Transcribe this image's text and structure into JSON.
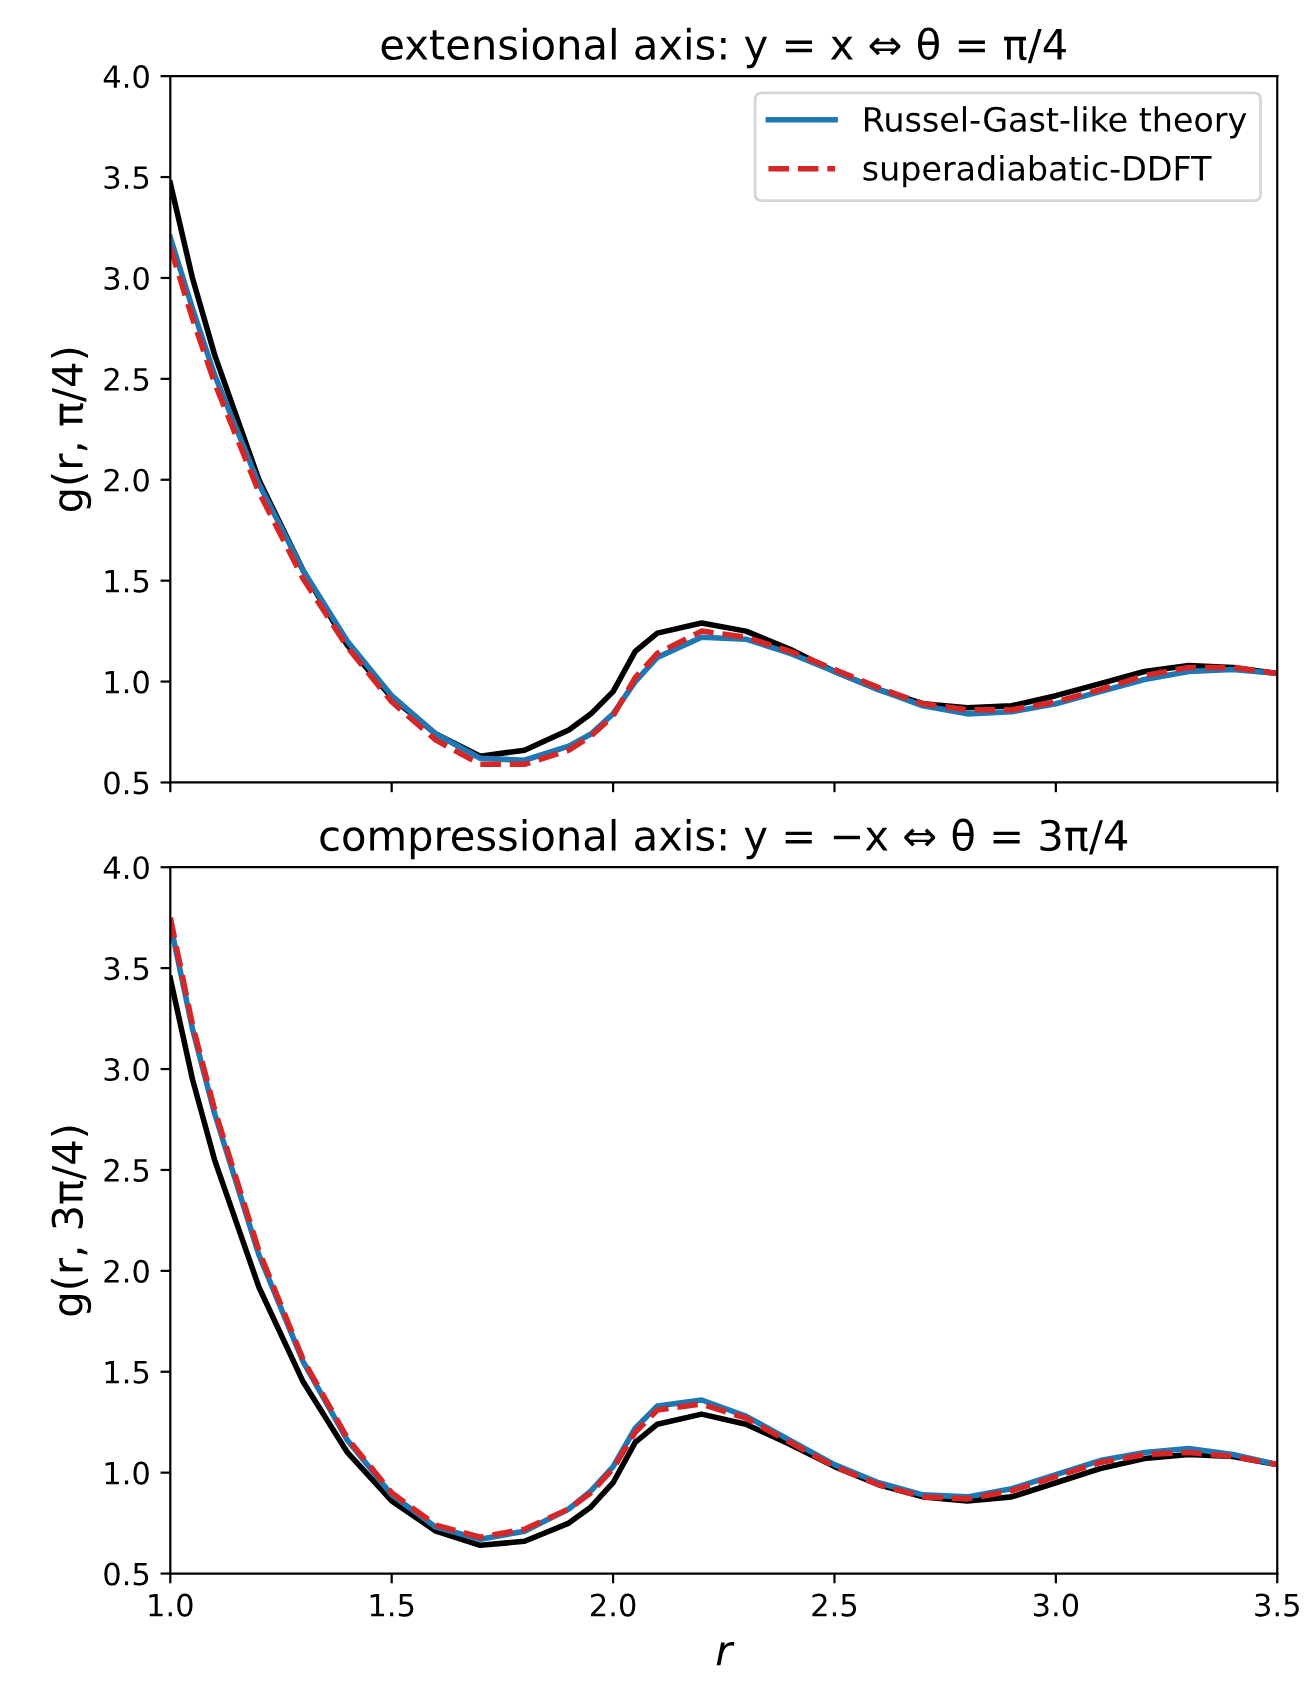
{
  "chart_data": [
    {
      "type": "line",
      "title": "extensional axis: y = x ⇔ θ = π/4",
      "ylabel": "g(r, π/4)",
      "xlim": [
        1.0,
        3.5
      ],
      "ylim": [
        0.5,
        4.0
      ],
      "xticks": [
        1,
        1.5,
        2,
        2.5,
        3,
        3.5
      ],
      "yticks": [
        0.5,
        {
          "value": 1,
          "label": "1.0"
        },
        1.5,
        {
          "value": 2,
          "label": "2.0"
        },
        2.5,
        {
          "value": 3,
          "label": "3.0"
        },
        3.5,
        {
          "value": 4,
          "label": "4.0"
        }
      ],
      "tick_labels": "y",
      "legend": "top right",
      "x": [
        1.0,
        1.05,
        1.1,
        1.2,
        1.3,
        1.4,
        1.5,
        1.6,
        1.7,
        1.8,
        1.9,
        1.95,
        2.0,
        2.05,
        2.1,
        2.2,
        2.3,
        2.4,
        2.5,
        2.6,
        2.7,
        2.8,
        2.9,
        3.0,
        3.1,
        3.2,
        3.3,
        3.4,
        3.5
      ],
      "series": [
        {
          "color": "#000000",
          "line_style": "solid",
          "values": [
            3.47,
            3.0,
            2.62,
            2.0,
            1.55,
            1.18,
            0.92,
            0.74,
            0.63,
            0.66,
            0.76,
            0.84,
            0.95,
            1.15,
            1.24,
            1.29,
            1.25,
            1.16,
            1.05,
            0.96,
            0.89,
            0.87,
            0.88,
            0.93,
            0.99,
            1.05,
            1.08,
            1.07,
            1.04
          ]
        },
        {
          "name": "Russel-Gast-like theory",
          "color": "#1f77b4",
          "line_style": "solid",
          "values": [
            3.2,
            2.85,
            2.52,
            1.98,
            1.55,
            1.2,
            0.93,
            0.74,
            0.62,
            0.61,
            0.68,
            0.74,
            0.84,
            1.0,
            1.12,
            1.22,
            1.21,
            1.14,
            1.05,
            0.96,
            0.88,
            0.84,
            0.85,
            0.89,
            0.95,
            1.01,
            1.05,
            1.06,
            1.04
          ]
        },
        {
          "name": "superadiabatic-DDFT",
          "color": "#d62728",
          "line_style": "dashed",
          "values": [
            3.15,
            2.8,
            2.48,
            1.94,
            1.51,
            1.17,
            0.9,
            0.71,
            0.59,
            0.59,
            0.66,
            0.73,
            0.83,
            1.02,
            1.14,
            1.25,
            1.22,
            1.15,
            1.06,
            0.97,
            0.89,
            0.86,
            0.86,
            0.9,
            0.96,
            1.03,
            1.07,
            1.07,
            1.04
          ]
        }
      ]
    },
    {
      "type": "line",
      "title": "compressional axis: y = −x ⇔ θ = 3π/4",
      "xlabel": "r",
      "ylabel": "g(r, 3π/4)",
      "xlim": [
        1.0,
        3.5
      ],
      "ylim": [
        0.5,
        4.0
      ],
      "xticks": [
        {
          "value": 1,
          "label": "1.0"
        },
        1.5,
        {
          "value": 2,
          "label": "2.0"
        },
        2.5,
        {
          "value": 3,
          "label": "3.0"
        },
        3.5
      ],
      "yticks": [
        0.5,
        {
          "value": 1,
          "label": "1.0"
        },
        1.5,
        {
          "value": 2,
          "label": "2.0"
        },
        2.5,
        {
          "value": 3,
          "label": "3.0"
        },
        3.5,
        {
          "value": 4,
          "label": "4.0"
        }
      ],
      "x": [
        1.0,
        1.05,
        1.1,
        1.2,
        1.3,
        1.4,
        1.5,
        1.6,
        1.7,
        1.8,
        1.9,
        1.95,
        2.0,
        2.05,
        2.1,
        2.2,
        2.3,
        2.4,
        2.5,
        2.6,
        2.7,
        2.8,
        2.9,
        3.0,
        3.1,
        3.2,
        3.3,
        3.4,
        3.5
      ],
      "series": [
        {
          "color": "#000000",
          "line_style": "solid",
          "values": [
            3.45,
            2.95,
            2.55,
            1.92,
            1.45,
            1.1,
            0.86,
            0.71,
            0.64,
            0.66,
            0.75,
            0.83,
            0.95,
            1.15,
            1.24,
            1.29,
            1.24,
            1.14,
            1.03,
            0.94,
            0.88,
            0.86,
            0.88,
            0.95,
            1.02,
            1.07,
            1.09,
            1.08,
            1.04
          ]
        },
        {
          "color": "#1f77b4",
          "line_style": "solid",
          "values": [
            3.72,
            3.2,
            2.78,
            2.08,
            1.55,
            1.16,
            0.89,
            0.73,
            0.67,
            0.71,
            0.82,
            0.91,
            1.03,
            1.22,
            1.33,
            1.36,
            1.28,
            1.16,
            1.04,
            0.95,
            0.89,
            0.88,
            0.92,
            0.99,
            1.06,
            1.1,
            1.12,
            1.09,
            1.04
          ]
        },
        {
          "color": "#d62728",
          "line_style": "dashed",
          "values": [
            3.75,
            3.22,
            2.8,
            2.1,
            1.56,
            1.17,
            0.9,
            0.74,
            0.68,
            0.72,
            0.82,
            0.9,
            1.02,
            1.2,
            1.31,
            1.34,
            1.27,
            1.15,
            1.03,
            0.94,
            0.88,
            0.87,
            0.91,
            0.98,
            1.05,
            1.09,
            1.1,
            1.08,
            1.04
          ]
        }
      ]
    }
  ]
}
